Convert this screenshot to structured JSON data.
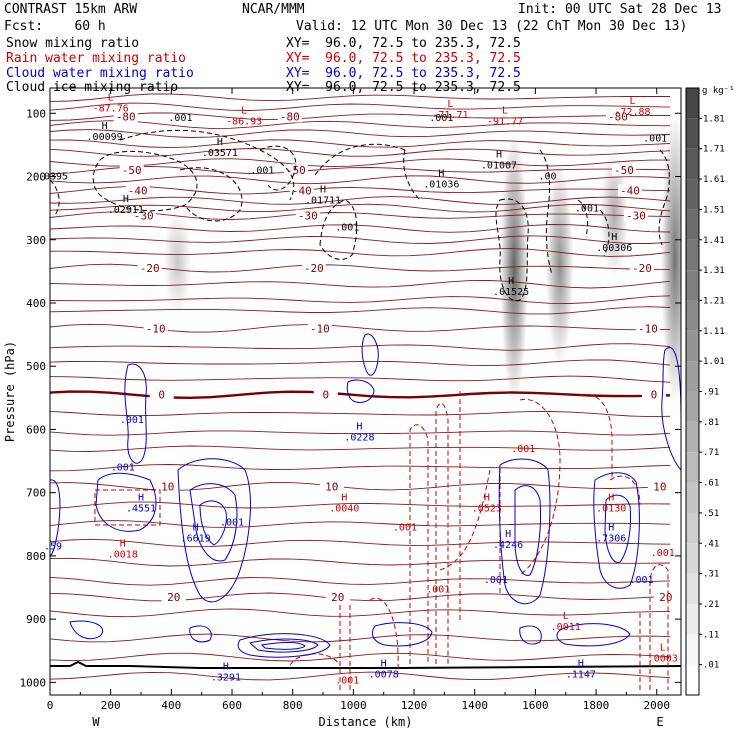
{
  "header": {
    "model": "CONTRAST 15km ARW",
    "forecast": "Fcst:    60 h",
    "org": "NCAR/MMM",
    "init": "Init: 00 UTC Sat 28 Dec 13",
    "valid": "Valid: 12 UTC Mon 30 Dec 13 (22 ChT Mon 30 Dec 13)"
  },
  "fields": [
    {
      "name": "Snow mixing ratio",
      "xy": "XY=  96.0, 72.5 to 235.3, 72.5",
      "color": "#000000"
    },
    {
      "name": "Rain water mixing ratio",
      "xy": "XY=  96.0, 72.5 to 235.3, 72.5",
      "color": "#cc0000"
    },
    {
      "name": "Cloud water mixing ratio",
      "xy": "XY=  96.0, 72.5 to 235.3, 72.5",
      "color": "#0000cc"
    },
    {
      "name": "Cloud ice mixing ratio",
      "xy": "XY=  96.0, 72.5 to 235.3, 72.5",
      "color": "#000000"
    }
  ],
  "chart_data": {
    "type": "cross-section contour",
    "xlabel": "Distance (km)",
    "ylabel": "Pressure (hPa)",
    "xlim": [
      0,
      2080
    ],
    "ylim": [
      1020,
      60
    ],
    "x_ticks": [
      0,
      200,
      400,
      600,
      800,
      1000,
      1200,
      1400,
      1600,
      1800,
      2000
    ],
    "y_ticks": [
      100,
      200,
      300,
      400,
      500,
      600,
      700,
      800,
      900,
      1000
    ],
    "endpoints": {
      "left": "W",
      "right": "E"
    },
    "colorbar": {
      "unit": "g kg⁻¹",
      "labels": [
        "1.81",
        "1.71",
        "1.61",
        "1.51",
        "1.41",
        "1.31",
        "1.21",
        "1.11",
        "1.01",
        ".91",
        ".81",
        ".71",
        ".61",
        ".51",
        ".41",
        ".31",
        ".21",
        ".11",
        ".01"
      ]
    },
    "temperature_contours": [
      {
        "label": "-80",
        "pressure": 105
      },
      {
        "label": "-50",
        "pressure": 190
      },
      {
        "label": "-40",
        "pressure": 222
      },
      {
        "label": "-30",
        "pressure": 262
      },
      {
        "label": "-20",
        "pressure": 345
      },
      {
        "label": "-10",
        "pressure": 440
      },
      {
        "label": "0",
        "pressure": 545
      },
      {
        "label": "10",
        "pressure": 690
      },
      {
        "label": "20",
        "pressure": 865
      }
    ],
    "snow_shading": [
      {
        "x": 420,
        "p_top": 250,
        "p_bottom": 420,
        "max": 0.4
      },
      {
        "x": 1530,
        "p_top": 130,
        "p_bottom": 560,
        "max": 1.1
      },
      {
        "x": 1680,
        "p_top": 180,
        "p_bottom": 500,
        "max": 0.8
      },
      {
        "x": 1860,
        "p_top": 160,
        "p_bottom": 360,
        "max": 0.6
      },
      {
        "x": 2060,
        "p_top": 100,
        "p_bottom": 560,
        "max": 1.0
      }
    ],
    "extrema": [
      {
        "kind": "L",
        "label": "-87.76",
        "x": 200,
        "p": 80,
        "color": "red"
      },
      {
        "kind": "L",
        "label": "-86.93",
        "x": 640,
        "p": 100,
        "color": "red"
      },
      {
        "kind": "L",
        "label": "-71.71",
        "x": 1320,
        "p": 90,
        "color": "red"
      },
      {
        "kind": "L",
        "label": "-91.77",
        "x": 1500,
        "p": 100,
        "color": "red"
      },
      {
        "kind": "L",
        "label": "-72.88",
        "x": 1920,
        "p": 85,
        "color": "red"
      },
      {
        "kind": "H",
        "label": ".00099",
        "x": 180,
        "p": 125,
        "color": "black"
      },
      {
        "kind": "H",
        "label": ".03571",
        "x": 560,
        "p": 150,
        "color": "black"
      },
      {
        "kind": "H",
        "label": ".01007",
        "x": 1480,
        "p": 170,
        "color": "black"
      },
      {
        "kind": "H",
        "label": ".01036",
        "x": 1290,
        "p": 200,
        "color": "black"
      },
      {
        "kind": "H",
        "label": ".01711",
        "x": 900,
        "p": 225,
        "color": "black"
      },
      {
        "kind": "H",
        "label": ".02911",
        "x": 250,
        "p": 240,
        "color": "black"
      },
      {
        "kind": "H",
        "label": ".00306",
        "x": 1860,
        "p": 300,
        "color": "black"
      },
      {
        "kind": "H",
        "label": ".01525",
        "x": 1520,
        "p": 370,
        "color": "black"
      },
      {
        "kind": "H",
        "label": ".0228",
        "x": 1020,
        "p": 600,
        "color": "blue"
      },
      {
        "kind": "H",
        "label": ".4551",
        "x": 300,
        "p": 712,
        "color": "blue"
      },
      {
        "kind": "H",
        "label": ".0040",
        "x": 970,
        "p": 712,
        "color": "red"
      },
      {
        "kind": "H",
        "label": ".0523",
        "x": 1440,
        "p": 712,
        "color": "red"
      },
      {
        "kind": "H",
        "label": ".0130",
        "x": 1850,
        "p": 712,
        "color": "red"
      },
      {
        "kind": "H",
        "label": ".6619",
        "x": 480,
        "p": 760,
        "color": "blue"
      },
      {
        "kind": "H",
        "label": ".4246",
        "x": 1510,
        "p": 770,
        "color": "blue"
      },
      {
        "kind": "H",
        "label": ".7306",
        "x": 1850,
        "p": 760,
        "color": "blue"
      },
      {
        "kind": "H",
        "label": ".0018",
        "x": 240,
        "p": 785,
        "color": "red"
      },
      {
        "kind": "L",
        "label": ".0011",
        "x": 1700,
        "p": 900,
        "color": "red"
      },
      {
        "kind": "L",
        "label": ".0003",
        "x": 2020,
        "p": 950,
        "color": "red"
      },
      {
        "kind": "H",
        "label": ".3291",
        "x": 580,
        "p": 980,
        "color": "blue"
      },
      {
        "kind": "H",
        "label": ".0078",
        "x": 1100,
        "p": 975,
        "color": "blue"
      },
      {
        "kind": "H",
        "label": ".1147",
        "x": 1750,
        "p": 975,
        "color": "blue"
      }
    ],
    "contour_labels": [
      {
        "label": ".001",
        "x": 430,
        "p": 112,
        "color": "black"
      },
      {
        "label": ".001",
        "x": 700,
        "p": 195,
        "color": "black"
      },
      {
        "label": ".001",
        "x": 980,
        "p": 285,
        "color": "black"
      },
      {
        "label": ".001",
        "x": 1290,
        "p": 112,
        "color": "black"
      },
      {
        "label": ".001",
        "x": 1995,
        "p": 145,
        "color": "black"
      },
      {
        "label": ".001",
        "x": 1770,
        "p": 255,
        "color": "black"
      },
      {
        "label": ".00",
        "x": 1640,
        "p": 205,
        "color": "black"
      },
      {
        "label": ".0395",
        "x": 10,
        "p": 205,
        "color": "black"
      },
      {
        "label": ".001",
        "x": 270,
        "p": 590,
        "color": "blue"
      },
      {
        "label": ".001",
        "x": 240,
        "p": 665,
        "color": "blue"
      },
      {
        "label": ".001",
        "x": 600,
        "p": 752,
        "color": "blue"
      },
      {
        "label": ".001",
        "x": 1470,
        "p": 843,
        "color": "blue"
      },
      {
        "label": ".001",
        "x": 1950,
        "p": 843,
        "color": "blue"
      },
      {
        "label": ".59",
        "x": 10,
        "p": 790,
        "color": "blue"
      },
      {
        "label": ".001",
        "x": 1560,
        "p": 636,
        "color": "red"
      },
      {
        "label": ".001",
        "x": 1170,
        "p": 760,
        "color": "red"
      },
      {
        "label": ".001",
        "x": 1280,
        "p": 858,
        "color": "red"
      },
      {
        "label": ".001",
        "x": 980,
        "p": 1002,
        "color": "red"
      },
      {
        "label": ".001",
        "x": 2020,
        "p": 800,
        "color": "red"
      }
    ]
  }
}
